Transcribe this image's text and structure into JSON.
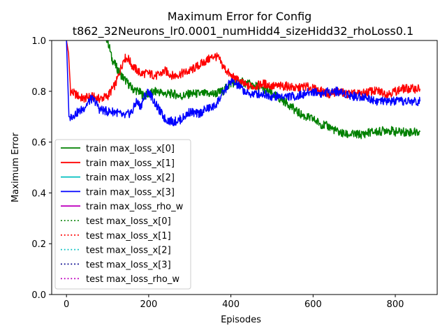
{
  "chart_data": {
    "type": "line",
    "title_line1": "Maximum Error for Config",
    "title_line2": "t862_32Neurons_lr0.0001_numHidd4_sizeHidd32_rhoLoss0.1",
    "xlabel": "Episodes",
    "ylabel": "Maximum Error",
    "xlim": [
      -36,
      902
    ],
    "ylim": [
      0.0,
      1.0
    ],
    "xticks": [
      0,
      200,
      400,
      600,
      800
    ],
    "yticks": [
      0.0,
      0.2,
      0.4,
      0.6,
      0.8,
      1.0
    ],
    "grid": false,
    "legend_position": "lower-left",
    "series": [
      {
        "name": "train max_loss_x[0]",
        "color": "#008000",
        "style": "solid",
        "visible": true,
        "points": [
          [
            88,
            1.05
          ],
          [
            95,
            1.02
          ],
          [
            100,
            1.0
          ],
          [
            105,
            0.97
          ],
          [
            110,
            0.93
          ],
          [
            120,
            0.9
          ],
          [
            130,
            0.87
          ],
          [
            140,
            0.85
          ],
          [
            150,
            0.83
          ],
          [
            160,
            0.81
          ],
          [
            175,
            0.8
          ],
          [
            190,
            0.78
          ],
          [
            200,
            0.79
          ],
          [
            220,
            0.8
          ],
          [
            240,
            0.79
          ],
          [
            260,
            0.79
          ],
          [
            280,
            0.78
          ],
          [
            300,
            0.79
          ],
          [
            320,
            0.79
          ],
          [
            340,
            0.79
          ],
          [
            360,
            0.79
          ],
          [
            380,
            0.8
          ],
          [
            400,
            0.83
          ],
          [
            420,
            0.84
          ],
          [
            440,
            0.83
          ],
          [
            460,
            0.82
          ],
          [
            480,
            0.81
          ],
          [
            500,
            0.79
          ],
          [
            520,
            0.77
          ],
          [
            540,
            0.75
          ],
          [
            560,
            0.72
          ],
          [
            580,
            0.7
          ],
          [
            600,
            0.69
          ],
          [
            620,
            0.67
          ],
          [
            640,
            0.66
          ],
          [
            660,
            0.64
          ],
          [
            680,
            0.63
          ],
          [
            700,
            0.63
          ],
          [
            720,
            0.63
          ],
          [
            740,
            0.64
          ],
          [
            760,
            0.64
          ],
          [
            780,
            0.65
          ],
          [
            800,
            0.64
          ],
          [
            820,
            0.64
          ],
          [
            840,
            0.64
          ],
          [
            860,
            0.64
          ]
        ]
      },
      {
        "name": "train max_loss_x[1]",
        "color": "#ff0000",
        "style": "solid",
        "visible": true,
        "points": [
          [
            0,
            1.0
          ],
          [
            5,
            0.95
          ],
          [
            10,
            0.8
          ],
          [
            20,
            0.79
          ],
          [
            40,
            0.77
          ],
          [
            60,
            0.78
          ],
          [
            80,
            0.77
          ],
          [
            100,
            0.78
          ],
          [
            120,
            0.83
          ],
          [
            140,
            0.93
          ],
          [
            150,
            0.93
          ],
          [
            160,
            0.9
          ],
          [
            180,
            0.87
          ],
          [
            200,
            0.87
          ],
          [
            220,
            0.86
          ],
          [
            240,
            0.88
          ],
          [
            260,
            0.86
          ],
          [
            280,
            0.87
          ],
          [
            300,
            0.88
          ],
          [
            320,
            0.9
          ],
          [
            340,
            0.92
          ],
          [
            360,
            0.94
          ],
          [
            370,
            0.93
          ],
          [
            380,
            0.9
          ],
          [
            400,
            0.86
          ],
          [
            420,
            0.84
          ],
          [
            440,
            0.82
          ],
          [
            460,
            0.82
          ],
          [
            480,
            0.83
          ],
          [
            500,
            0.82
          ],
          [
            520,
            0.82
          ],
          [
            540,
            0.82
          ],
          [
            560,
            0.81
          ],
          [
            580,
            0.82
          ],
          [
            600,
            0.81
          ],
          [
            620,
            0.8
          ],
          [
            640,
            0.79
          ],
          [
            660,
            0.8
          ],
          [
            680,
            0.79
          ],
          [
            700,
            0.79
          ],
          [
            720,
            0.79
          ],
          [
            740,
            0.8
          ],
          [
            760,
            0.8
          ],
          [
            780,
            0.79
          ],
          [
            800,
            0.8
          ],
          [
            820,
            0.81
          ],
          [
            840,
            0.81
          ],
          [
            860,
            0.81
          ]
        ]
      },
      {
        "name": "train max_loss_x[2]",
        "color": "#00bfbf",
        "style": "solid",
        "visible": false,
        "points": []
      },
      {
        "name": "train max_loss_x[3]",
        "color": "#0000ff",
        "style": "solid",
        "visible": true,
        "points": [
          [
            0,
            1.0
          ],
          [
            3,
            0.85
          ],
          [
            6,
            0.7
          ],
          [
            10,
            0.7
          ],
          [
            20,
            0.71
          ],
          [
            40,
            0.73
          ],
          [
            50,
            0.75
          ],
          [
            60,
            0.77
          ],
          [
            70,
            0.76
          ],
          [
            80,
            0.73
          ],
          [
            100,
            0.72
          ],
          [
            120,
            0.72
          ],
          [
            140,
            0.7
          ],
          [
            160,
            0.72
          ],
          [
            170,
            0.76
          ],
          [
            180,
            0.74
          ],
          [
            190,
            0.78
          ],
          [
            200,
            0.8
          ],
          [
            210,
            0.77
          ],
          [
            220,
            0.74
          ],
          [
            240,
            0.69
          ],
          [
            260,
            0.68
          ],
          [
            280,
            0.69
          ],
          [
            300,
            0.72
          ],
          [
            320,
            0.71
          ],
          [
            340,
            0.73
          ],
          [
            360,
            0.74
          ],
          [
            380,
            0.79
          ],
          [
            400,
            0.84
          ],
          [
            420,
            0.82
          ],
          [
            440,
            0.79
          ],
          [
            460,
            0.79
          ],
          [
            480,
            0.79
          ],
          [
            500,
            0.78
          ],
          [
            520,
            0.78
          ],
          [
            540,
            0.78
          ],
          [
            560,
            0.78
          ],
          [
            580,
            0.79
          ],
          [
            600,
            0.8
          ],
          [
            620,
            0.79
          ],
          [
            640,
            0.8
          ],
          [
            660,
            0.8
          ],
          [
            680,
            0.79
          ],
          [
            700,
            0.78
          ],
          [
            720,
            0.78
          ],
          [
            740,
            0.77
          ],
          [
            760,
            0.76
          ],
          [
            780,
            0.76
          ],
          [
            800,
            0.76
          ],
          [
            820,
            0.76
          ],
          [
            840,
            0.76
          ],
          [
            860,
            0.76
          ]
        ]
      },
      {
        "name": "train max_loss_rho_w",
        "color": "#bf00bf",
        "style": "solid",
        "visible": false,
        "points": []
      },
      {
        "name": "test max_loss_x[0]",
        "color": "#008000",
        "style": "dotted",
        "visible": false,
        "points": []
      },
      {
        "name": "test max_loss_x[1]",
        "color": "#ff0000",
        "style": "dotted",
        "visible": false,
        "points": []
      },
      {
        "name": "test max_loss_x[2]",
        "color": "#00bfbf",
        "style": "dotted",
        "visible": false,
        "points": []
      },
      {
        "name": "test max_loss_x[3]",
        "color": "#00008b",
        "style": "dotted",
        "visible": false,
        "points": []
      },
      {
        "name": "test max_loss_rho_w",
        "color": "#bf00bf",
        "style": "dotted",
        "visible": false,
        "points": []
      }
    ]
  }
}
